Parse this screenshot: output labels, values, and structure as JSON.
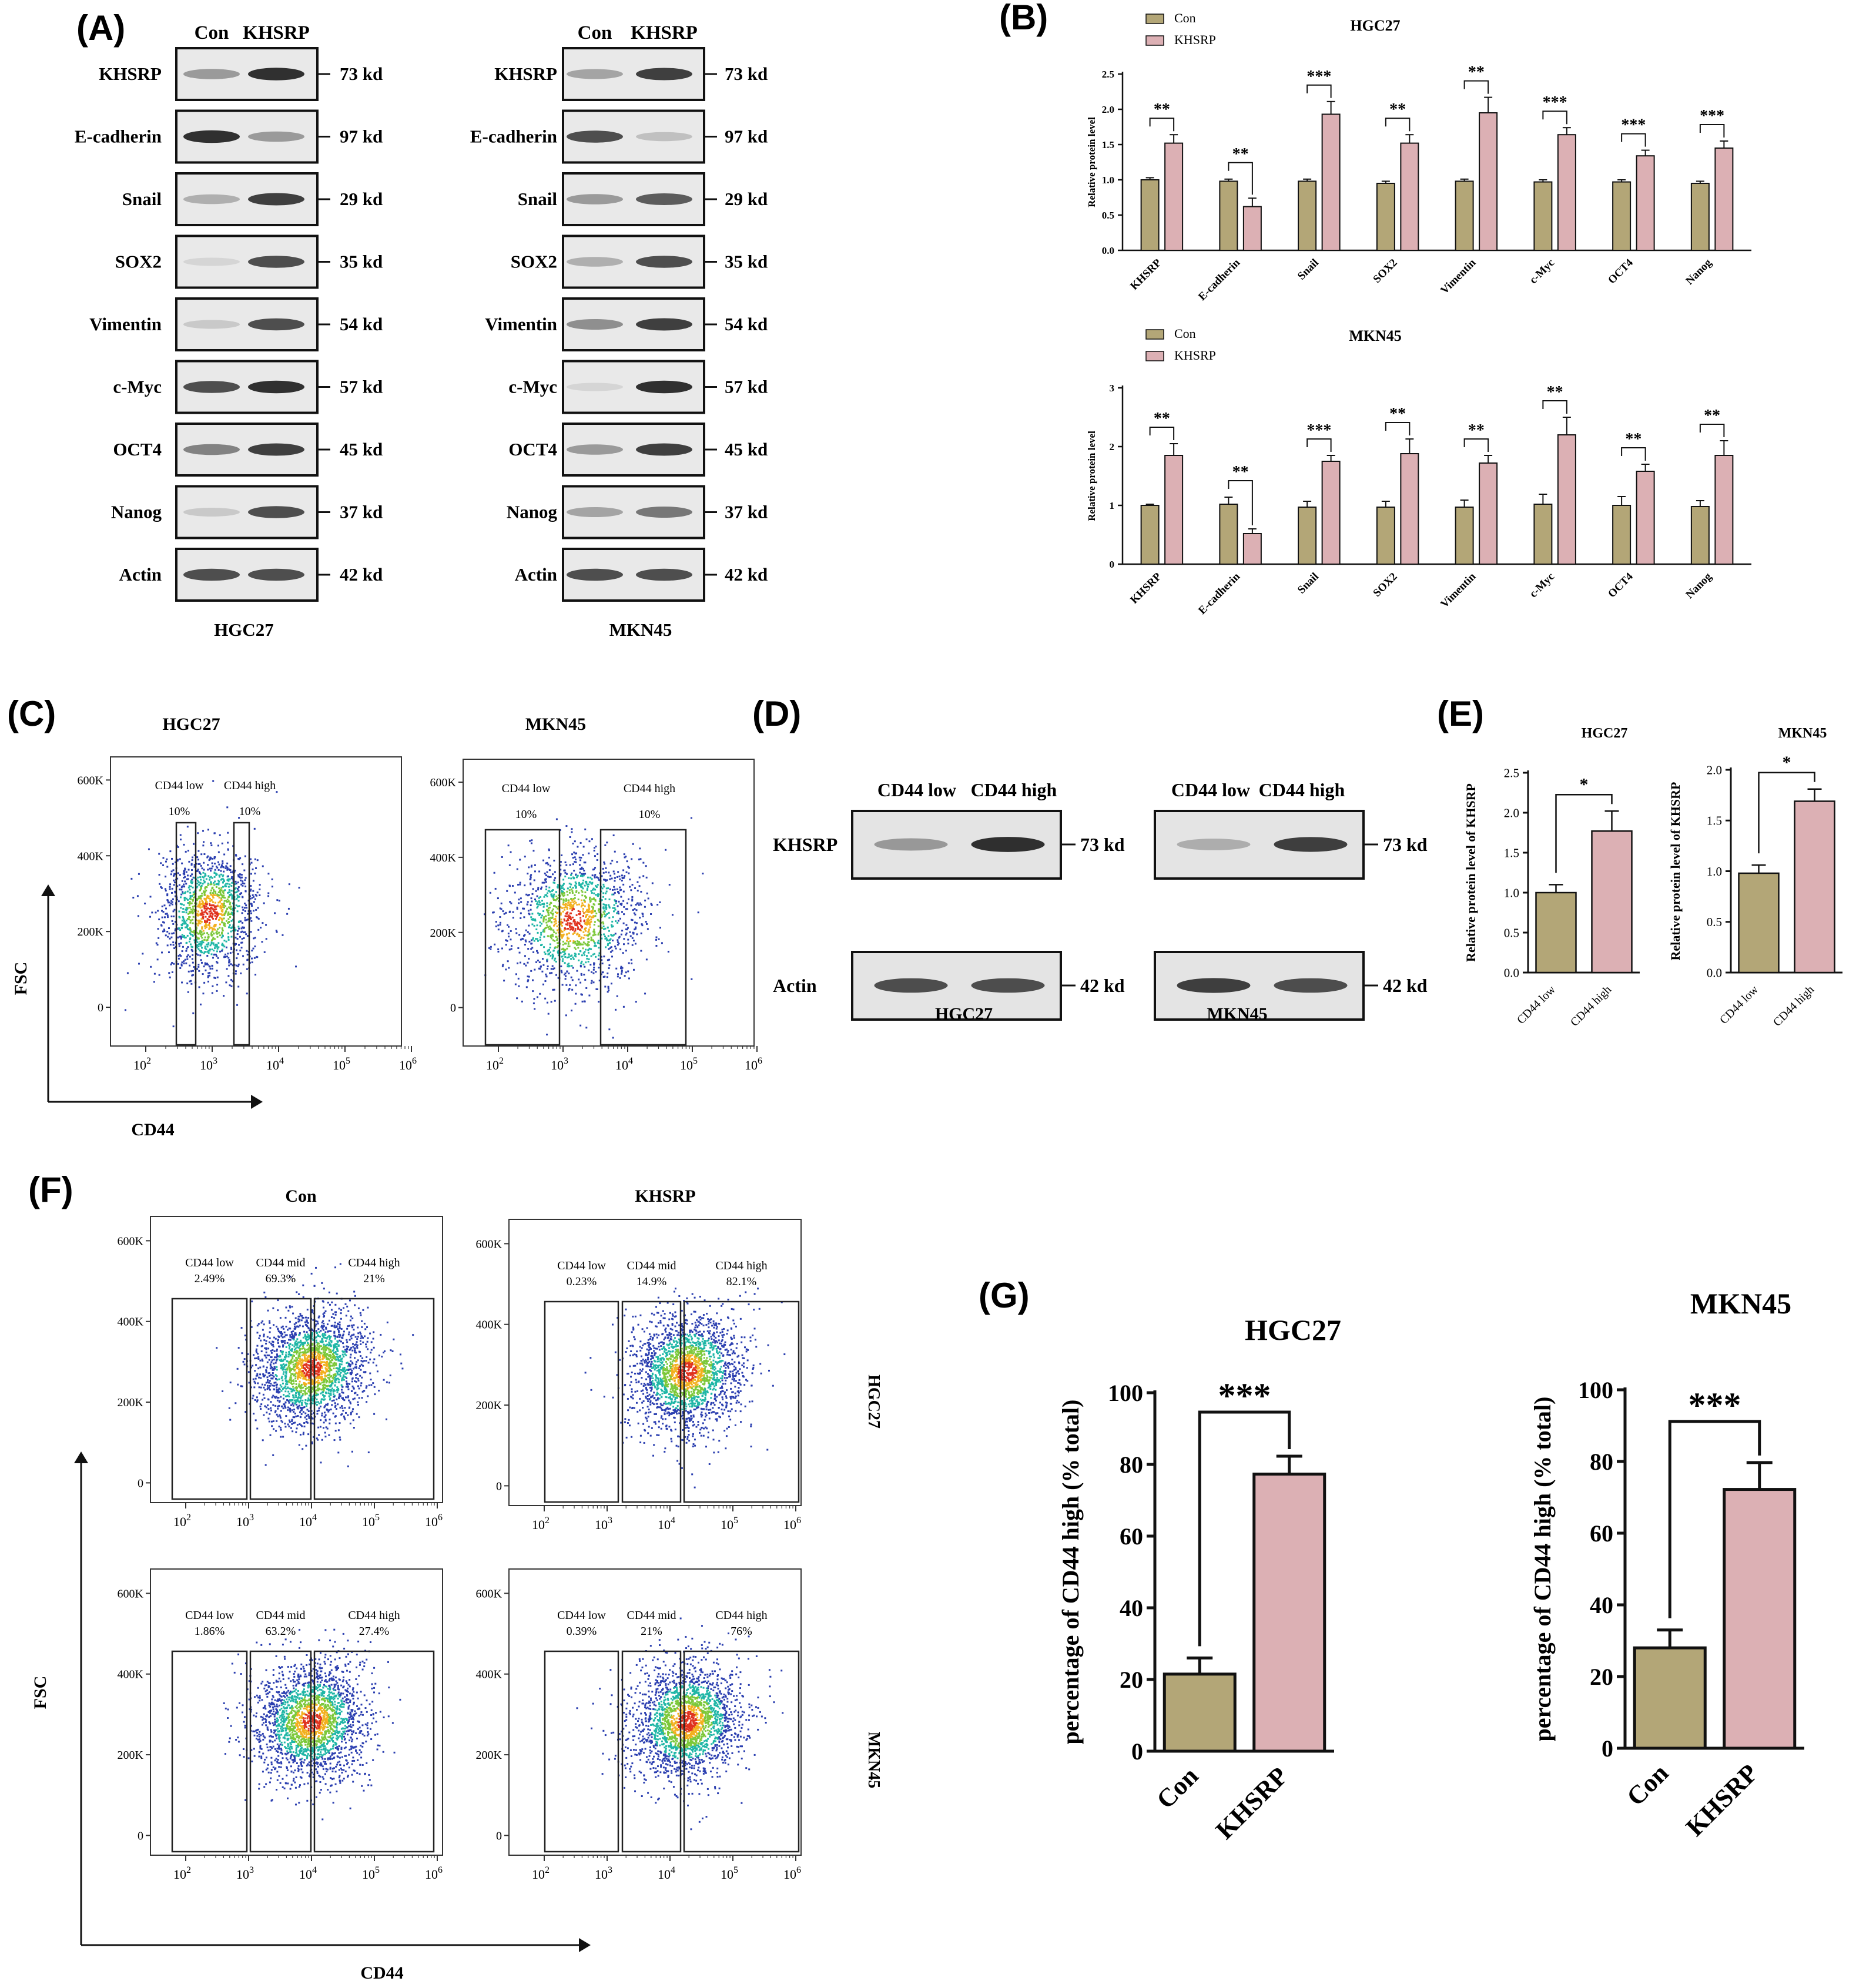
{
  "panel_letters": {
    "A": "(A)",
    "B": "(B)",
    "C": "(C)",
    "D": "(D)",
    "E": "(E)",
    "F": "(F)",
    "G": "(G)"
  },
  "colors": {
    "con": "#b3a677",
    "khsrp": "#dcb0b4",
    "outline": "#111111"
  },
  "panelA": {
    "lanes": [
      "Con",
      "KHSRP"
    ],
    "proteins": [
      "KHSRP",
      "E-cadherin",
      "Snail",
      "SOX2",
      "Vimentin",
      "c-Myc",
      "OCT4",
      "Nanog",
      "Actin"
    ],
    "sizes": [
      "73 kd",
      "97 kd",
      "29 kd",
      "35 kd",
      "54 kd",
      "57 kd",
      "45 kd",
      "37 kd",
      "42 kd"
    ],
    "blots": [
      {
        "cell": "HGC27",
        "intensity": [
          [
            0.55,
            0.95
          ],
          [
            0.95,
            0.55
          ],
          [
            0.45,
            0.9
          ],
          [
            0.2,
            0.85
          ],
          [
            0.3,
            0.85
          ],
          [
            0.85,
            0.95
          ],
          [
            0.65,
            0.9
          ],
          [
            0.3,
            0.85
          ],
          [
            0.85,
            0.85
          ]
        ]
      },
      {
        "cell": "MKN45",
        "intensity": [
          [
            0.5,
            0.9
          ],
          [
            0.85,
            0.35
          ],
          [
            0.55,
            0.8
          ],
          [
            0.45,
            0.85
          ],
          [
            0.6,
            0.9
          ],
          [
            0.2,
            0.95
          ],
          [
            0.55,
            0.9
          ],
          [
            0.5,
            0.7
          ],
          [
            0.85,
            0.85
          ]
        ]
      }
    ]
  },
  "chart_data": [
    {
      "id": "B-HGC27",
      "type": "bar",
      "title": "HGC27",
      "ylabel": "Relative protein level",
      "categories": [
        "KHSRP",
        "E-cadherin",
        "Snail",
        "SOX2",
        "Vimentin",
        "c-Myc",
        "OCT4",
        "Nanog"
      ],
      "series": [
        {
          "name": "Con",
          "values": [
            1.0,
            0.98,
            0.98,
            0.95,
            0.98,
            0.97,
            0.97,
            0.95
          ],
          "errors": [
            0.03,
            0.03,
            0.03,
            0.03,
            0.03,
            0.03,
            0.03,
            0.03
          ]
        },
        {
          "name": "KHSRP",
          "values": [
            1.52,
            0.62,
            1.93,
            1.52,
            1.95,
            1.64,
            1.34,
            1.45
          ],
          "errors": [
            0.12,
            0.12,
            0.18,
            0.12,
            0.22,
            0.1,
            0.08,
            0.1
          ]
        }
      ],
      "significance": [
        "**",
        "**",
        "***",
        "**",
        "**",
        "***",
        "***",
        "***"
      ],
      "ylim": [
        0,
        2.5
      ],
      "yticks": [
        "0.0",
        "0.5",
        "1.0",
        "1.5",
        "2.0",
        "2.5"
      ],
      "legend": "top-left"
    },
    {
      "id": "B-MKN45",
      "type": "bar",
      "title": "MKN45",
      "ylabel": "Relative protein level",
      "categories": [
        "KHSRP",
        "E-cadherin",
        "Snail",
        "SOX2",
        "Vimentin",
        "c-Myc",
        "OCT4",
        "Nanog"
      ],
      "series": [
        {
          "name": "Con",
          "values": [
            1.0,
            1.02,
            0.97,
            0.97,
            0.97,
            1.02,
            1.0,
            0.98
          ],
          "errors": [
            0.02,
            0.12,
            0.1,
            0.1,
            0.12,
            0.17,
            0.15,
            0.1
          ]
        },
        {
          "name": "KHSRP",
          "values": [
            1.85,
            0.52,
            1.75,
            1.88,
            1.72,
            2.2,
            1.58,
            1.85
          ],
          "errors": [
            0.2,
            0.08,
            0.1,
            0.25,
            0.13,
            0.3,
            0.12,
            0.25
          ]
        }
      ],
      "significance": [
        "**",
        "**",
        "***",
        "**",
        "**",
        "**",
        "**",
        "**"
      ],
      "ylim": [
        0,
        3
      ],
      "yticks": [
        "0",
        "1",
        "2",
        "3"
      ],
      "legend": "top-left"
    },
    {
      "id": "E-HGC27",
      "type": "bar",
      "title": "HGC27",
      "ylabel": "Relative protein level of KHSRP",
      "categories": [
        "CD44 low",
        "CD44 high"
      ],
      "values": [
        1.0,
        1.77
      ],
      "errors": [
        0.1,
        0.25
      ],
      "significance": "*",
      "ylim": [
        0,
        2.5
      ],
      "yticks": [
        "0.0",
        "0.5",
        "1.0",
        "1.5",
        "2.0",
        "2.5"
      ]
    },
    {
      "id": "E-MKN45",
      "type": "bar",
      "title": "MKN45",
      "ylabel": "Relative protein level of KHSRP",
      "categories": [
        "CD44 low",
        "CD44 high"
      ],
      "values": [
        0.98,
        1.69
      ],
      "errors": [
        0.08,
        0.12
      ],
      "significance": "*",
      "ylim": [
        0,
        2.0
      ],
      "yticks": [
        "0.0",
        "0.5",
        "1.0",
        "1.5",
        "2.0"
      ]
    },
    {
      "id": "G-HGC27",
      "type": "bar",
      "title": "HGC27",
      "ylabel": "percentage of CD44 high (% total)",
      "categories": [
        "Con",
        "KHSRP"
      ],
      "values": [
        21.5,
        77.3
      ],
      "errors": [
        4.5,
        5.0
      ],
      "significance": "***",
      "ylim": [
        0,
        100
      ],
      "yticks": [
        "0",
        "20",
        "40",
        "60",
        "80",
        "100"
      ]
    },
    {
      "id": "G-MKN45",
      "type": "bar",
      "title": "MKN45",
      "ylabel": "percentage of CD44 high (% total)",
      "categories": [
        "Con",
        "KHSRP"
      ],
      "values": [
        28.0,
        72.2
      ],
      "errors": [
        5.0,
        7.5
      ],
      "significance": "***",
      "ylim": [
        0,
        100
      ],
      "yticks": [
        "0",
        "20",
        "40",
        "60",
        "80",
        "100"
      ]
    }
  ],
  "panelC": {
    "x_axis": "CD44",
    "y_axis": "FSC",
    "yticks": [
      "600K",
      "400K",
      "200K",
      "0"
    ],
    "xticks": [
      "2",
      "3",
      "4",
      "5",
      "6"
    ],
    "xbase": "10",
    "plots": [
      {
        "title": "HGC27",
        "gates": [
          {
            "label": "CD44 low",
            "pct": "10%"
          },
          {
            "label": "CD44 high",
            "pct": "10%"
          }
        ]
      },
      {
        "title": "MKN45",
        "gates": [
          {
            "label": "CD44 low",
            "pct": "10%"
          },
          {
            "label": "CD44 high",
            "pct": "10%"
          }
        ]
      }
    ]
  },
  "panelD": {
    "lanes": [
      "CD44 low",
      "CD44 high"
    ],
    "rows": [
      "KHSRP",
      "Actin"
    ],
    "sizes": [
      "73 kd",
      "42 kd"
    ],
    "cells": [
      "HGC27",
      "MKN45"
    ]
  },
  "panelF": {
    "x_axis": "CD44",
    "y_axis": "FSC",
    "columns": [
      "Con",
      "KHSRP"
    ],
    "rows": [
      "HGC27",
      "MKN45"
    ],
    "yticks": [
      "600K",
      "400K",
      "200K",
      "0"
    ],
    "xticks": [
      "2",
      "3",
      "4",
      "5",
      "6"
    ],
    "xbase": "10",
    "gate_labels": [
      "CD44 low",
      "CD44 mid",
      "CD44 high"
    ],
    "plots": [
      [
        "2.49%",
        "69.3%",
        "21%"
      ],
      [
        "0.23%",
        "14.9%",
        "82.1%"
      ],
      [
        "1.86%",
        "63.2%",
        "27.4%"
      ],
      [
        "0.39%",
        "21%",
        "76%"
      ]
    ]
  }
}
